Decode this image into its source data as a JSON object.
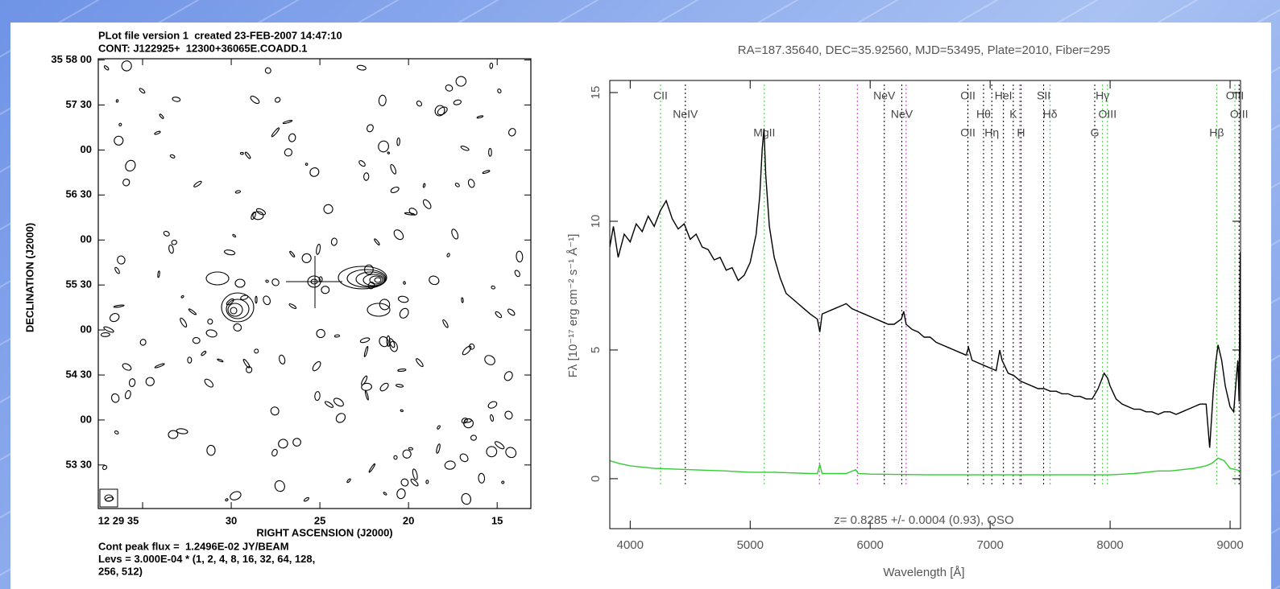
{
  "chart_data": [
    {
      "type": "contour",
      "title": "PLot file version 1  created 23-FEB-2007 14:47:10",
      "subtitle": "CONT: J122925+  12300+36065E.COADD.1",
      "xlabel": "RIGHT ASCENSION (J2000)",
      "ylabel": "DECLINATION (J2000)",
      "xlim": [
        37.5,
        13.1
      ],
      "ylim": [
        35.8836,
        35.9669
      ],
      "xticks": [
        {
          "value": 35,
          "label": "12 29 35"
        },
        30,
        25,
        20,
        15
      ],
      "yticks": [
        {
          "value": 35.96667,
          "label": "35 58 00"
        },
        {
          "value": 35.95833,
          "label": "57 30"
        },
        {
          "value": 35.95,
          "label": "00"
        },
        {
          "value": 35.94167,
          "label": "56 30"
        },
        {
          "value": 35.93333,
          "label": "00"
        },
        {
          "value": 35.925,
          "label": "55 30"
        },
        {
          "value": 35.91667,
          "label": "00"
        },
        {
          "value": 35.90833,
          "label": "54 30"
        },
        {
          "value": 35.9,
          "label": "00"
        },
        {
          "value": 35.89167,
          "label": "53 30"
        }
      ],
      "notes": [
        "Cont peak flux =  1.2496E-02 JY/BEAM",
        "Levs = 3.000E-04 * (1, 2, 4, 8, 16, 32, 64, 128,",
        "256, 512)"
      ]
    },
    {
      "type": "line",
      "title": "RA=187.35640, DEC=35.92560, MJD=53495, Plate=2010, Fiber=295",
      "xlabel": "Wavelength [Å]",
      "ylabel": "Fλ [10⁻¹⁷ erg cm⁻² s⁻¹ Å⁻¹]",
      "annotation": "z= 0.8285 +/- 0.0004 (0.93), QSO",
      "xlim": [
        3830,
        9087
      ],
      "ylim": [
        -1.94,
        15.47
      ],
      "xticks": [
        4000,
        5000,
        6000,
        7000,
        8000,
        9000
      ],
      "yticks": [
        0,
        5,
        10,
        15
      ],
      "series": [
        {
          "color": "#000000",
          "x": [
            3830,
            3860,
            3900,
            3950,
            4000,
            4050,
            4100,
            4150,
            4200,
            4250,
            4300,
            4350,
            4400,
            4450,
            4500,
            4550,
            4600,
            4650,
            4700,
            4750,
            4800,
            4850,
            4900,
            4950,
            5000,
            5050,
            5080,
            5100,
            5115,
            5130,
            5160,
            5200,
            5250,
            5300,
            5350,
            5400,
            5450,
            5500,
            5560,
            5580,
            5600,
            5650,
            5700,
            5750,
            5800,
            5850,
            5900,
            5950,
            6000,
            6050,
            6100,
            6150,
            6200,
            6260,
            6280,
            6300,
            6350,
            6400,
            6450,
            6500,
            6550,
            6600,
            6650,
            6700,
            6750,
            6800,
            6820,
            6850,
            6900,
            6950,
            7000,
            7050,
            7080,
            7100,
            7150,
            7200,
            7250,
            7300,
            7350,
            7400,
            7450,
            7500,
            7550,
            7600,
            7650,
            7700,
            7750,
            7800,
            7850,
            7900,
            7950,
            7980,
            8000,
            8050,
            8100,
            8150,
            8200,
            8250,
            8300,
            8350,
            8400,
            8450,
            8500,
            8550,
            8600,
            8650,
            8700,
            8750,
            8800,
            8830,
            8860,
            8880,
            8900,
            8930,
            8960,
            9000,
            9030,
            9050,
            9065,
            9075,
            9085
          ],
          "values": [
            9.0,
            9.8,
            8.6,
            9.5,
            9.2,
            9.9,
            9.6,
            10.2,
            9.8,
            10.4,
            10.8,
            10.1,
            9.7,
            9.9,
            9.3,
            9.5,
            9.0,
            8.9,
            8.5,
            8.6,
            8.1,
            8.2,
            7.7,
            7.9,
            8.4,
            9.5,
            11.0,
            12.8,
            13.6,
            11.8,
            9.8,
            8.6,
            7.8,
            7.2,
            7.0,
            6.8,
            6.6,
            6.4,
            6.2,
            5.7,
            6.4,
            6.5,
            6.6,
            6.7,
            6.8,
            6.6,
            6.5,
            6.4,
            6.3,
            6.2,
            6.1,
            6.0,
            6.0,
            6.2,
            6.5,
            6.0,
            5.8,
            5.7,
            5.5,
            5.5,
            5.3,
            5.2,
            5.1,
            5.0,
            4.9,
            4.8,
            5.1,
            4.6,
            4.5,
            4.4,
            4.3,
            4.2,
            5.0,
            4.6,
            4.1,
            4.0,
            3.8,
            3.7,
            3.6,
            3.5,
            3.5,
            3.4,
            3.4,
            3.3,
            3.3,
            3.2,
            3.2,
            3.1,
            3.1,
            3.5,
            4.1,
            3.9,
            3.6,
            3.1,
            2.9,
            2.8,
            2.7,
            2.7,
            2.6,
            2.6,
            2.5,
            2.6,
            2.6,
            2.5,
            2.6,
            2.7,
            2.8,
            2.9,
            2.9,
            1.2,
            3.4,
            4.5,
            5.2,
            4.6,
            3.6,
            2.8,
            2.6,
            3.8,
            4.6,
            3.0,
            8.8
          ]
        },
        {
          "color": "#33cc33",
          "x": [
            3830,
            3900,
            4000,
            4200,
            4500,
            4800,
            5000,
            5200,
            5500,
            5560,
            5580,
            5600,
            5800,
            5880,
            5900,
            6000,
            6500,
            7000,
            7500,
            8000,
            8200,
            8400,
            8500,
            8600,
            8700,
            8800,
            8850,
            8900,
            8950,
            9000,
            9050,
            9087
          ],
          "values": [
            0.7,
            0.6,
            0.5,
            0.4,
            0.35,
            0.3,
            0.25,
            0.25,
            0.2,
            0.2,
            0.55,
            0.2,
            0.2,
            0.35,
            0.2,
            0.18,
            0.15,
            0.15,
            0.15,
            0.15,
            0.2,
            0.3,
            0.3,
            0.35,
            0.4,
            0.5,
            0.6,
            0.8,
            0.7,
            0.4,
            0.35,
            0.3
          ]
        }
      ],
      "sky_lines": [
        5577,
        5893,
        6300,
        7246
      ],
      "lines": [
        {
          "label": "CII",
          "wavelength": 4253,
          "color": "#33cc33"
        },
        {
          "label": "NeIV",
          "wavelength": 4460,
          "color": "#000000"
        },
        {
          "label": "MgII",
          "wavelength": 5118,
          "color": "#33cc33"
        },
        {
          "label": "NeV",
          "wavelength": 6118,
          "color": "#000000"
        },
        {
          "label": "NeV",
          "wavelength": 6264,
          "color": "#000000"
        },
        {
          "label": "OII",
          "wavelength": 6815,
          "color": "#33cc33"
        },
        {
          "label": "OII",
          "wavelength": 6815,
          "color": "#000000"
        },
        {
          "label": "Hθ",
          "wavelength": 6945,
          "color": "#000000"
        },
        {
          "label": "Hη",
          "wavelength": 7014,
          "color": "#000000"
        },
        {
          "label": "HeI",
          "wavelength": 7111,
          "color": "#000000"
        },
        {
          "label": "K",
          "wavelength": 7193,
          "color": "#000000"
        },
        {
          "label": "H",
          "wavelength": 7257,
          "color": "#000000"
        },
        {
          "label": "SII",
          "wavelength": 7446,
          "color": "#000000"
        },
        {
          "label": "Hδ",
          "wavelength": 7500,
          "color": "#33cc33"
        },
        {
          "label": "G",
          "wavelength": 7872,
          "color": "#000000"
        },
        {
          "label": "Hγ",
          "wavelength": 7937,
          "color": "#33cc33"
        },
        {
          "label": "OIII",
          "wavelength": 7978,
          "color": "#33cc33"
        },
        {
          "label": "Hβ",
          "wavelength": 8888,
          "color": "#33cc33"
        },
        {
          "label": "OIII",
          "wavelength": 9040,
          "color": "#33cc33"
        },
        {
          "label": "OIII",
          "wavelength": 9075,
          "color": "#000000"
        }
      ]
    }
  ]
}
